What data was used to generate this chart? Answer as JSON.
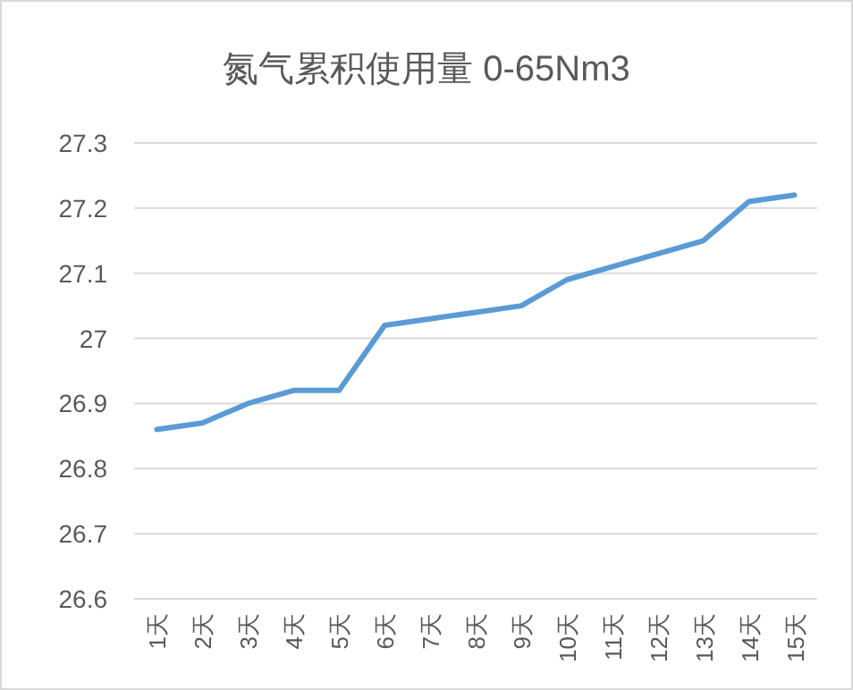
{
  "chart_data": {
    "type": "line",
    "title": "氮气累积使用量 0-65Nm3",
    "categories": [
      "1天",
      "2天",
      "3天",
      "4天",
      "5天",
      "6天",
      "7天",
      "8天",
      "9天",
      "10天",
      "11天",
      "12天",
      "13天",
      "14天",
      "15天"
    ],
    "series": [
      {
        "color": "#5b9bd5",
        "values": [
          26.86,
          26.87,
          26.9,
          26.92,
          26.92,
          27.02,
          27.03,
          27.04,
          27.05,
          27.09,
          27.11,
          27.13,
          27.15,
          27.21,
          27.22
        ]
      }
    ],
    "ylim": [
      26.6,
      27.3
    ],
    "yticks": [
      26.6,
      26.7,
      26.8,
      26.9,
      27,
      27.1,
      27.2,
      27.3
    ],
    "grid": "y"
  }
}
